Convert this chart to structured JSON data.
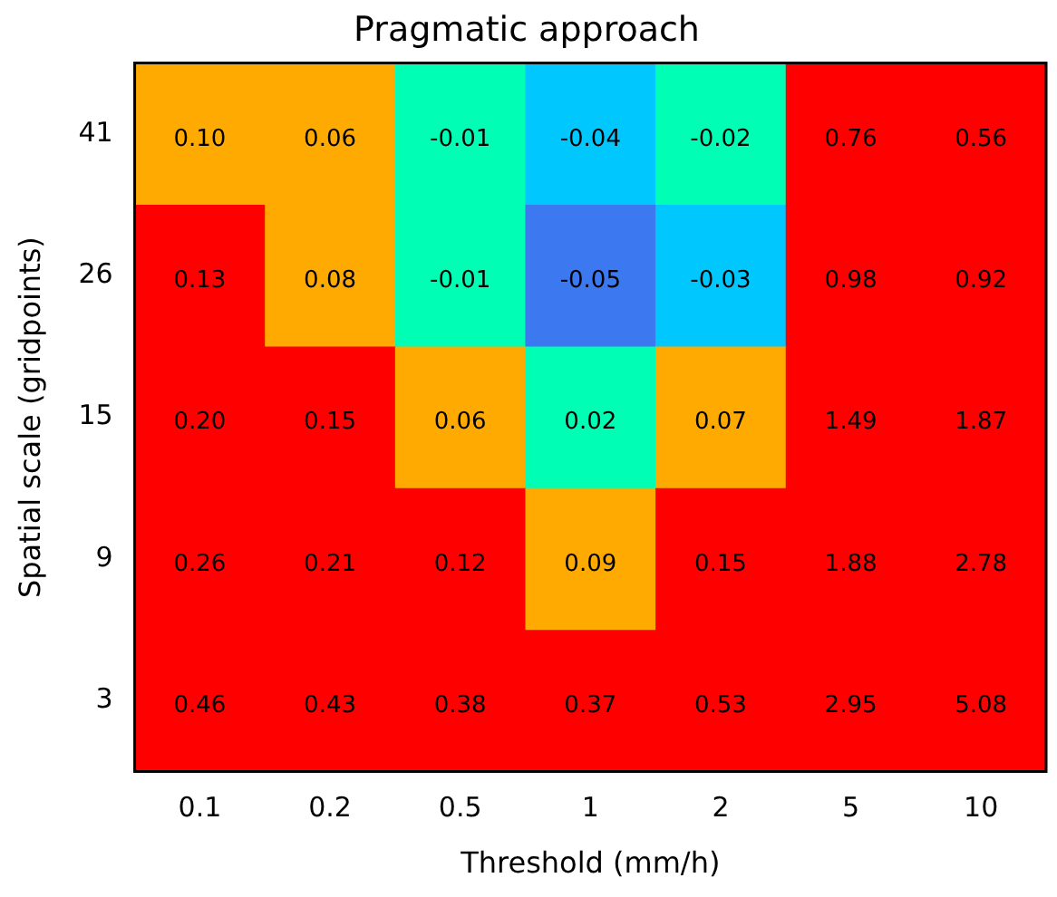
{
  "chart_data": {
    "type": "heatmap",
    "title": "Pragmatic approach",
    "xlabel": "Threshold (mm/h)",
    "ylabel": "Spatial scale (gridpoints)",
    "categories": [
      "0.1",
      "0.2",
      "0.5",
      "1",
      "2",
      "5",
      "10"
    ],
    "y_categories": [
      "41",
      "26",
      "15",
      "9",
      "3"
    ],
    "cells": [
      [
        0.1,
        0.06,
        -0.01,
        -0.04,
        -0.02,
        0.76,
        0.56
      ],
      [
        0.13,
        0.08,
        -0.01,
        -0.05,
        -0.03,
        0.98,
        0.92
      ],
      [
        0.2,
        0.15,
        0.06,
        0.02,
        0.07,
        1.49,
        1.87
      ],
      [
        0.26,
        0.21,
        0.12,
        0.09,
        0.15,
        1.88,
        2.78
      ],
      [
        0.46,
        0.43,
        0.38,
        0.37,
        0.53,
        2.95,
        5.08
      ]
    ],
    "cell_labels": [
      [
        "0.10",
        "0.06",
        "-0.01",
        "-0.04",
        "-0.02",
        "0.76",
        "0.56"
      ],
      [
        "0.13",
        "0.08",
        "-0.01",
        "-0.05",
        "-0.03",
        "0.98",
        "0.92"
      ],
      [
        "0.20",
        "0.15",
        "0.06",
        "0.02",
        "0.07",
        "1.49",
        "1.87"
      ],
      [
        "0.26",
        "0.21",
        "0.12",
        "0.09",
        "0.15",
        "1.88",
        "2.78"
      ],
      [
        "0.46",
        "0.43",
        "0.38",
        "0.37",
        "0.53",
        "2.95",
        "5.08"
      ]
    ]
  }
}
